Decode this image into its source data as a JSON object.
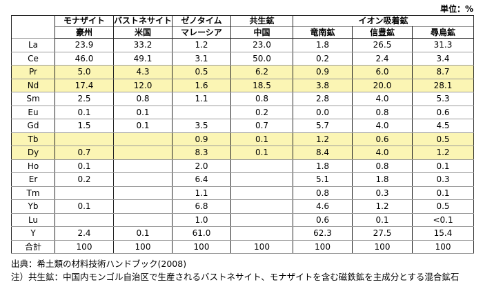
{
  "unit": "単位：%",
  "table": {
    "groups": [
      {
        "label": "モナザイト",
        "span": 1
      },
      {
        "label": "バストネサイト",
        "span": 1
      },
      {
        "label": "ゼノタイム",
        "span": 1
      },
      {
        "label": "共生鉱",
        "span": 1
      },
      {
        "label": "イオン吸着鉱",
        "span": 3
      }
    ],
    "columns": [
      "豪州",
      "米国",
      "マレーシア",
      "中国",
      "竜南鉱",
      "信豊鉱",
      "尋烏鉱"
    ],
    "highlight_color": "#fbf5b4",
    "rows": [
      {
        "label": "La",
        "cells": [
          "23.9",
          "33.2",
          "1.2",
          "23.0",
          "1.8",
          "26.5",
          "31.3"
        ]
      },
      {
        "label": "Ce",
        "cells": [
          "46.0",
          "49.1",
          "3.1",
          "50.0",
          "0.2",
          "2.4",
          "3.4"
        ]
      },
      {
        "label": "Pr",
        "highlight": true,
        "cells": [
          "5.0",
          "4.3",
          "0.5",
          "6.2",
          "0.9",
          "6.0",
          "8.7"
        ]
      },
      {
        "label": "Nd",
        "highlight": true,
        "cells": [
          "17.4",
          "12.0",
          "1.6",
          "18.5",
          "3.8",
          "20.0",
          "28.1"
        ]
      },
      {
        "label": "Sm",
        "cells": [
          "2.5",
          "0.8",
          "1.1",
          "0.8",
          "2.8",
          "4.0",
          "5.3"
        ]
      },
      {
        "label": "Eu",
        "cells": [
          "0.1",
          "0.1",
          null,
          "0.2",
          "0.0",
          "0.8",
          "0.6"
        ]
      },
      {
        "label": "Gd",
        "cells": [
          "1.5",
          "0.1",
          "3.5",
          "0.7",
          "5.7",
          "4.0",
          "4.5"
        ]
      },
      {
        "label": "Tb",
        "highlight": true,
        "cells": [
          null,
          null,
          "0.9",
          "0.1",
          "1.2",
          "0.6",
          "0.5"
        ]
      },
      {
        "label": "Dy",
        "highlight": true,
        "cells": [
          "0.7",
          null,
          "8.3",
          "0.1",
          "8.4",
          "4.0",
          "1.2"
        ]
      },
      {
        "label": "Ho",
        "cells": [
          "0.1",
          null,
          "2.0",
          null,
          "1.8",
          "0.8",
          "0.1"
        ]
      },
      {
        "label": "Er",
        "cells": [
          "0.2",
          null,
          "6.4",
          null,
          "5.1",
          "1.8",
          "0.3"
        ]
      },
      {
        "label": "Tm",
        "cells": [
          null,
          null,
          "1.1",
          null,
          "0.8",
          "0.3",
          "0.1"
        ]
      },
      {
        "label": "Yb",
        "cells": [
          "0.1",
          null,
          "6.8",
          null,
          "4.6",
          "1.2",
          "0.5"
        ]
      },
      {
        "label": "Lu",
        "cells": [
          null,
          null,
          "1.0",
          null,
          "0.6",
          "0.1",
          "<0.1"
        ]
      },
      {
        "label": "Y",
        "cells": [
          "2.4",
          "0.1",
          "61.0",
          null,
          "62.3",
          "27.5",
          "15.4"
        ]
      },
      {
        "label": "合計",
        "cells": [
          "100",
          "100",
          "100",
          "100",
          "100",
          "100",
          "100"
        ]
      }
    ]
  },
  "notes": [
    "出典：希土類の材料技術ハンドブック(2008)",
    "注）共生鉱：中国内モンゴル自治区で生産されるバストネサイト、モナザイトを含む磁鉄鉱を主成分とする混合鉱石"
  ]
}
